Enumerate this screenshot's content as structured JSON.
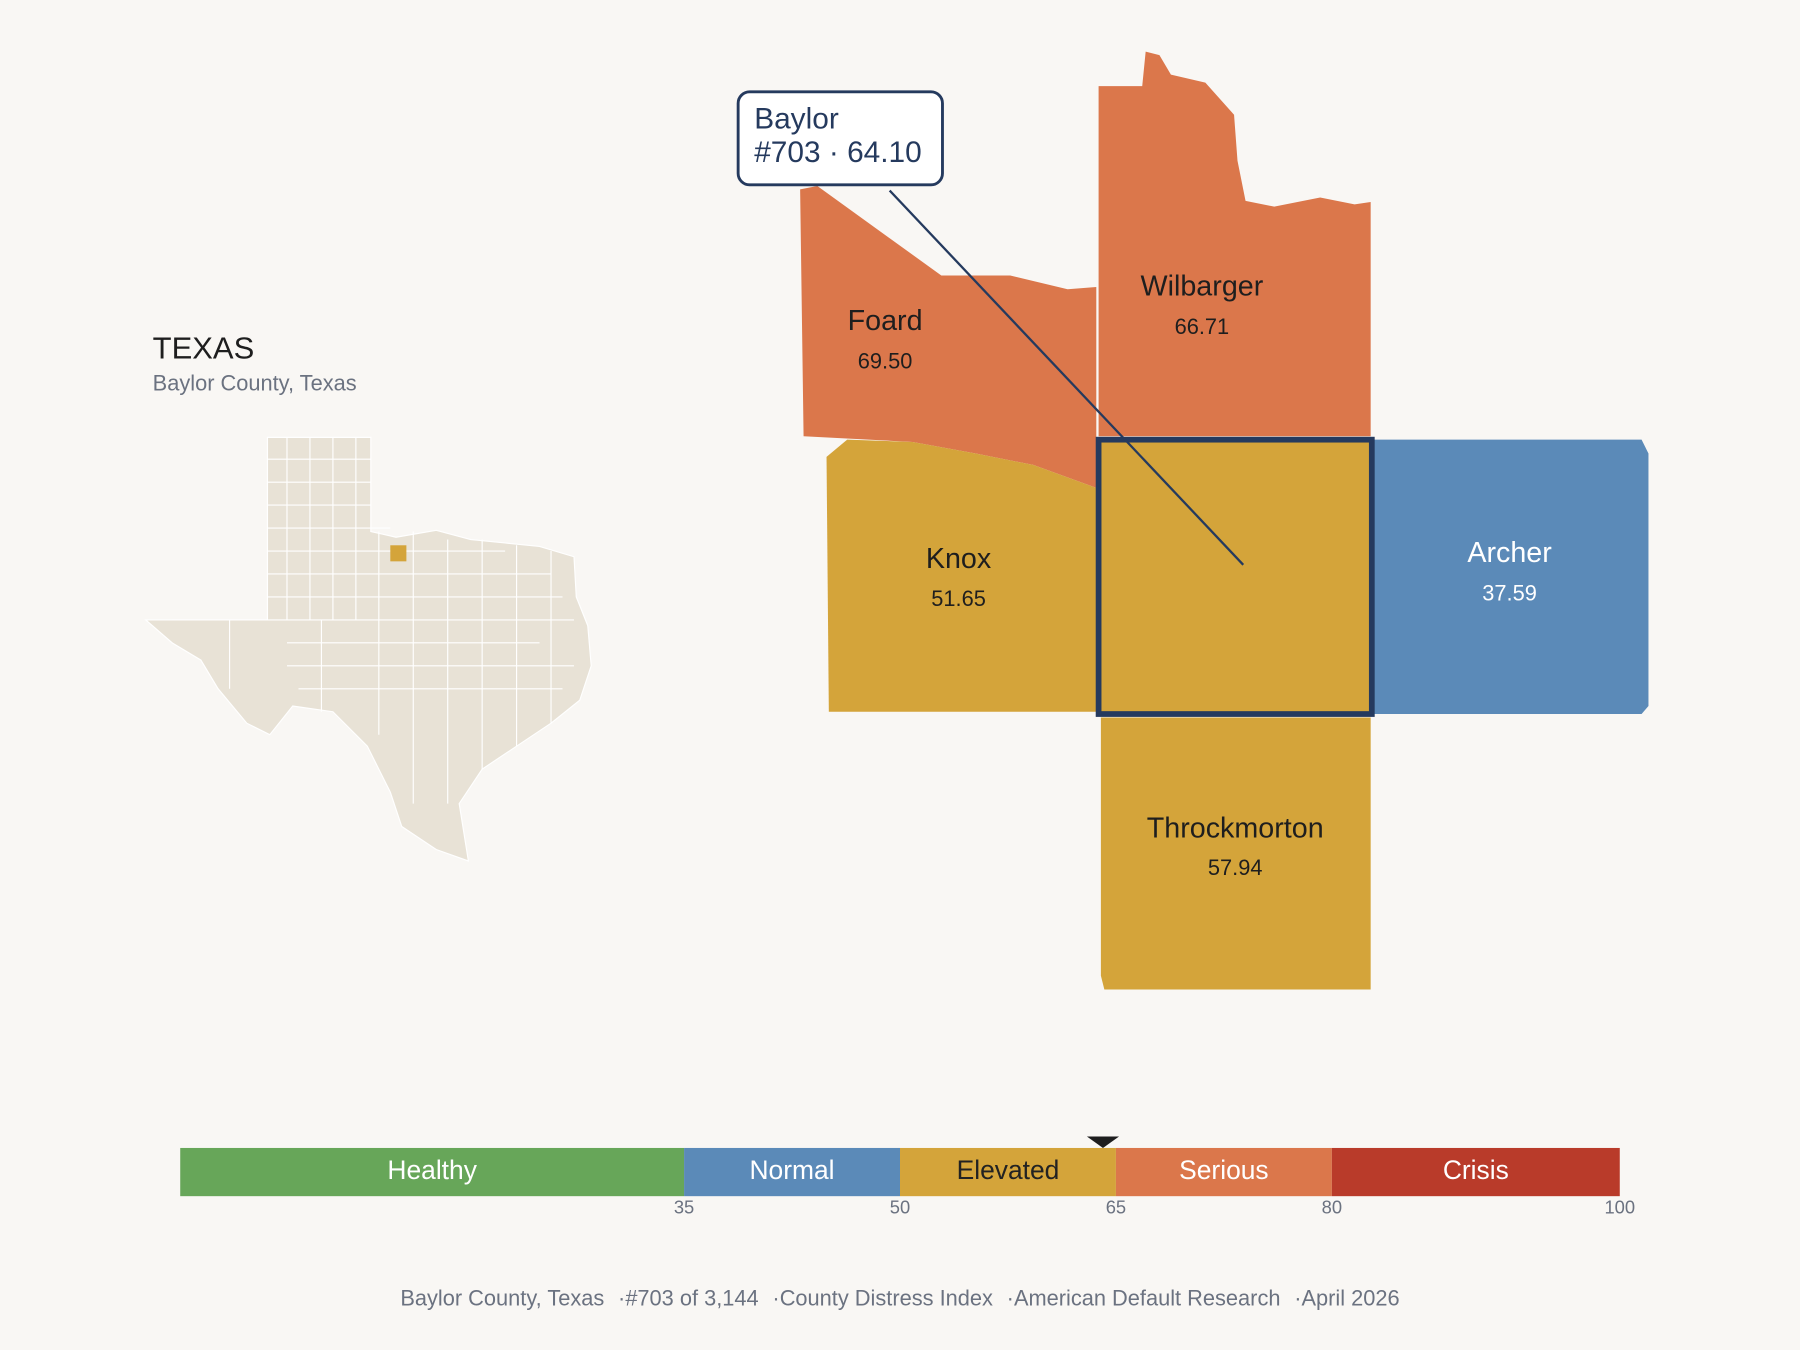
{
  "inset": {
    "title": "TEXAS",
    "subtitle": "Baylor County, Texas"
  },
  "counties": [
    {
      "name": "Baylor",
      "rank": "#703",
      "separator": "·",
      "score": "64.10",
      "color": "#d4a43a"
    },
    {
      "name": "Foard",
      "score": "69.50",
      "color": "#db774b"
    },
    {
      "name": "Wilbarger",
      "score": "66.71",
      "color": "#db774b"
    },
    {
      "name": "Knox",
      "score": "51.65",
      "color": "#d4a43a"
    },
    {
      "name": "Archer",
      "score": "37.59",
      "color": "#5b8ab8"
    },
    {
      "name": "Throckmorton",
      "score": "57.94",
      "color": "#d4a43a"
    }
  ],
  "scale": {
    "range": [
      0,
      100
    ],
    "ticks": [
      35,
      50,
      65,
      80,
      100
    ],
    "bands": [
      {
        "label": "Healthy",
        "color": "#67a659",
        "text_color": "#ffffff"
      },
      {
        "label": "Normal",
        "color": "#5b8ab8",
        "text_color": "#ffffff"
      },
      {
        "label": "Elevated",
        "color": "#d4a43a",
        "text_color": "#222222"
      },
      {
        "label": "Serious",
        "color": "#db774b",
        "text_color": "#ffffff"
      },
      {
        "label": "Crisis",
        "color": "#b93b2a",
        "text_color": "#ffffff"
      }
    ]
  },
  "footer": {
    "items": [
      "Baylor County, Texas",
      "#703 of 3,144",
      "County Distress Index",
      "American Default Research",
      "April 2026"
    ],
    "separator": "·"
  }
}
